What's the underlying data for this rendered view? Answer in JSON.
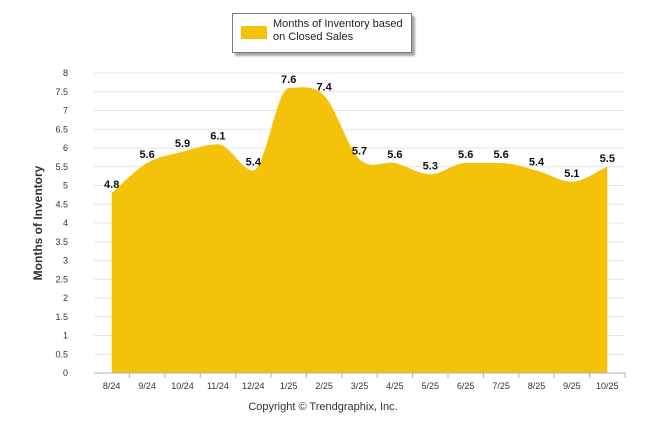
{
  "colors": {
    "series": "#f5c20a",
    "grid": "#e5e5e5",
    "axis": "#b0b0b0"
  },
  "legend": {
    "label": "Months of Inventory based on Closed Sales"
  },
  "footer": {
    "copyright": "Copyright © Trendgraphix, Inc."
  },
  "chart_data": {
    "type": "area",
    "title": "",
    "xlabel": "",
    "ylabel": "Months of Inventory",
    "ylim": [
      0,
      8
    ],
    "yticks": [
      "0",
      "0.5",
      "1",
      "1.5",
      "2",
      "2.5",
      "3",
      "3.5",
      "4",
      "4.5",
      "5",
      "5.5",
      "6",
      "6.5",
      "7",
      "7.5",
      "8"
    ],
    "grid": true,
    "legend_position": "top-center",
    "categories": [
      "8/24",
      "9/24",
      "10/24",
      "11/24",
      "12/24",
      "1/25",
      "2/25",
      "3/25",
      "4/25",
      "5/25",
      "6/25",
      "7/25",
      "8/25",
      "9/25",
      "10/25"
    ],
    "series": [
      {
        "name": "Months of Inventory based on Closed Sales",
        "values": [
          4.8,
          5.6,
          5.9,
          6.1,
          5.4,
          7.6,
          7.4,
          5.7,
          5.6,
          5.3,
          5.6,
          5.6,
          5.4,
          5.1,
          5.5
        ],
        "labels": [
          "4.8",
          "5.6",
          "5.9",
          "6.1",
          "5.4",
          "7.6",
          "7.4",
          "5.7",
          "5.6",
          "5.3",
          "5.6",
          "5.6",
          "5.4",
          "5.1",
          "5.5"
        ]
      }
    ]
  }
}
